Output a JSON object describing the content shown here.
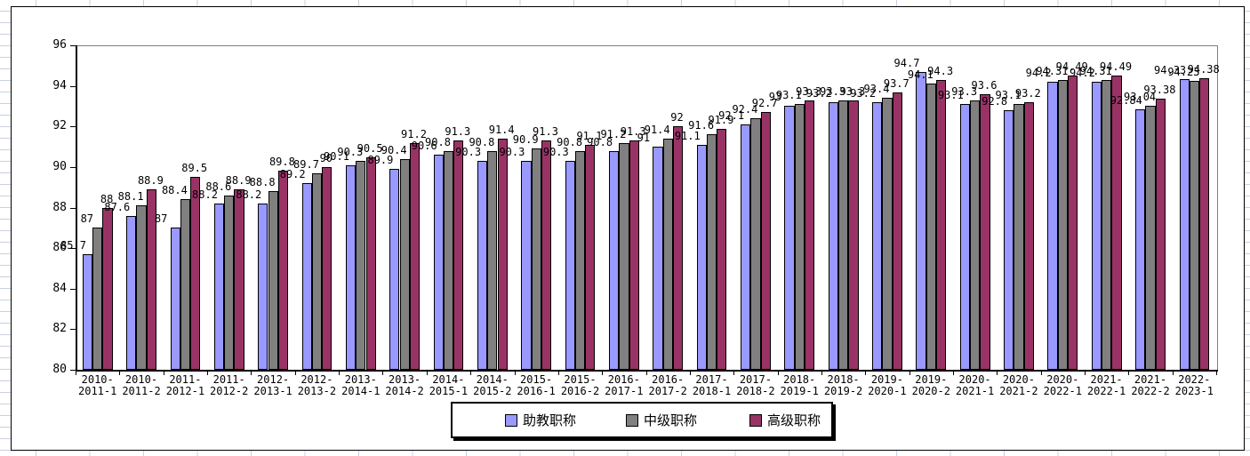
{
  "chart_data": {
    "type": "bar",
    "title": "",
    "categories": [
      "2010-2011-1",
      "2010-2011-2",
      "2011-2012-1",
      "2011-2012-2",
      "2012-2013-1",
      "2012-2013-2",
      "2013-2014-1",
      "2013-2014-2",
      "2014-2015-1",
      "2014-2015-2",
      "2015-2016-1",
      "2015-2016-2",
      "2016-2017-1",
      "2016-2017-2",
      "2017-2018-1",
      "2017-2018-2",
      "2018-2019-1",
      "2018-2019-2",
      "2019-2020-1",
      "2019-2020-2",
      "2020-2021-1",
      "2020-2021-2",
      "2020-2022-1",
      "2021-2022-1",
      "2021-2022-2",
      "2022-2023-1"
    ],
    "series": [
      {
        "name": "助教职称",
        "color": "#9999ff",
        "values": [
          85.7,
          87.6,
          87,
          88.2,
          88.2,
          89.2,
          90.1,
          89.9,
          90.6,
          90.3,
          90.3,
          90.3,
          90.8,
          91,
          91.1,
          92.1,
          93,
          93.2,
          93.2,
          94.7,
          93.1,
          92.8,
          94.2,
          94.2,
          92.84,
          94.33
        ]
      },
      {
        "name": "中级职称",
        "color": "#808080",
        "values": [
          87,
          88.1,
          88.4,
          88.6,
          88.8,
          89.7,
          90.3,
          90.4,
          90.8,
          90.8,
          90.9,
          90.8,
          91.2,
          91.4,
          91.6,
          92.4,
          93.1,
          93.3,
          93.4,
          94.1,
          93.3,
          93.1,
          94.31,
          94.31,
          93.04,
          94.23
        ]
      },
      {
        "name": "高级职称",
        "color": "#993366",
        "values": [
          88,
          88.9,
          89.5,
          88.9,
          89.8,
          90,
          90.5,
          91.2,
          91.3,
          91.4,
          91.3,
          91.1,
          91.3,
          92,
          91.9,
          92.7,
          93.3,
          93.3,
          93.7,
          94.3,
          93.6,
          93.2,
          94.49,
          94.49,
          93.38,
          94.38
        ]
      }
    ],
    "ylim": [
      80,
      96
    ],
    "y_ticks": [
      80,
      82,
      84,
      86,
      88,
      90,
      92,
      94,
      96
    ],
    "grid": false,
    "data_labels": true,
    "legend_position": "bottom",
    "axis_color": "#000000",
    "plot_border_color": "#808080"
  }
}
